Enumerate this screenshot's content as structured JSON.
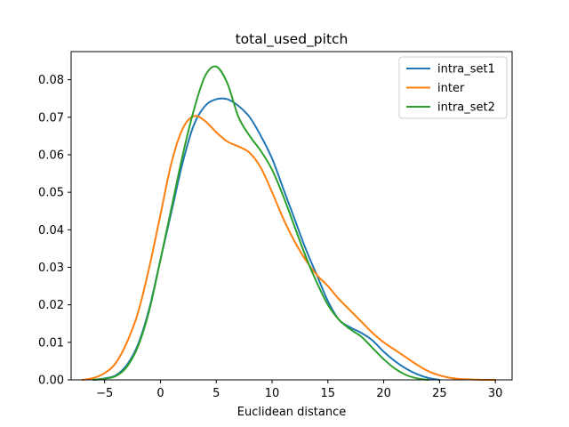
{
  "chart_data": {
    "type": "line",
    "title": "total_used_pitch",
    "xlabel": "Euclidean distance",
    "ylabel": "",
    "xlim": [
      -8,
      31.5
    ],
    "ylim": [
      0,
      0.0875
    ],
    "xticks": [
      -5,
      0,
      5,
      10,
      15,
      20,
      25,
      30
    ],
    "yticks": [
      0.0,
      0.01,
      0.02,
      0.03,
      0.04,
      0.05,
      0.06,
      0.07,
      0.08
    ],
    "ytick_labels": [
      "0.00",
      "0.01",
      "0.02",
      "0.03",
      "0.04",
      "0.05",
      "0.06",
      "0.07",
      "0.08"
    ],
    "xtick_labels": [
      "−5",
      "0",
      "5",
      "10",
      "15",
      "20",
      "25",
      "30"
    ],
    "grid": false,
    "legend_position": "top-right",
    "series": [
      {
        "name": "intra_set1",
        "color": "#1f77b4",
        "x": [
          -6,
          -5,
          -4,
          -3,
          -2,
          -1,
          0,
          1,
          2,
          3,
          4,
          5,
          6,
          7,
          8,
          9,
          10,
          11,
          12,
          13,
          14,
          15,
          16,
          17,
          18,
          19,
          20,
          21,
          22,
          23,
          24,
          25
        ],
        "y": [
          0.0,
          0.0004,
          0.0012,
          0.004,
          0.0095,
          0.019,
          0.032,
          0.045,
          0.058,
          0.068,
          0.073,
          0.0748,
          0.0748,
          0.073,
          0.07,
          0.065,
          0.059,
          0.051,
          0.043,
          0.035,
          0.028,
          0.021,
          0.016,
          0.014,
          0.0125,
          0.0105,
          0.0075,
          0.005,
          0.003,
          0.0015,
          0.0005,
          0.0
        ]
      },
      {
        "name": "inter",
        "color": "#ff7f0e",
        "x": [
          -7,
          -6,
          -5,
          -4,
          -3,
          -2,
          -1,
          0,
          1,
          2,
          3,
          4,
          5,
          6,
          7,
          8,
          9,
          10,
          11,
          12,
          13,
          14,
          15,
          16,
          17,
          18,
          19,
          20,
          21,
          22,
          23,
          24,
          25,
          26,
          27,
          28,
          29,
          30
        ],
        "y": [
          0.0,
          0.0005,
          0.0018,
          0.0045,
          0.01,
          0.018,
          0.03,
          0.044,
          0.058,
          0.067,
          0.0703,
          0.069,
          0.066,
          0.0635,
          0.0622,
          0.0605,
          0.0565,
          0.05,
          0.043,
          0.037,
          0.032,
          0.028,
          0.025,
          0.0215,
          0.0185,
          0.0155,
          0.0125,
          0.01,
          0.008,
          0.006,
          0.004,
          0.0023,
          0.0012,
          0.0005,
          0.0002,
          0.0001,
          0.0,
          0.0
        ]
      },
      {
        "name": "intra_set2",
        "color": "#2ca02c",
        "x": [
          -6,
          -5,
          -4,
          -3,
          -2,
          -1,
          0,
          1,
          2,
          3,
          4,
          5,
          6,
          7,
          8,
          9,
          10,
          11,
          12,
          13,
          14,
          15,
          16,
          17,
          18,
          19,
          20,
          21,
          22,
          23,
          24
        ],
        "y": [
          0.0,
          0.0003,
          0.001,
          0.0035,
          0.009,
          0.0185,
          0.032,
          0.046,
          0.06,
          0.072,
          0.081,
          0.0835,
          0.079,
          0.07,
          0.065,
          0.061,
          0.056,
          0.049,
          0.041,
          0.033,
          0.026,
          0.02,
          0.016,
          0.0135,
          0.0115,
          0.0085,
          0.0055,
          0.003,
          0.0013,
          0.0004,
          0.0
        ]
      }
    ]
  }
}
